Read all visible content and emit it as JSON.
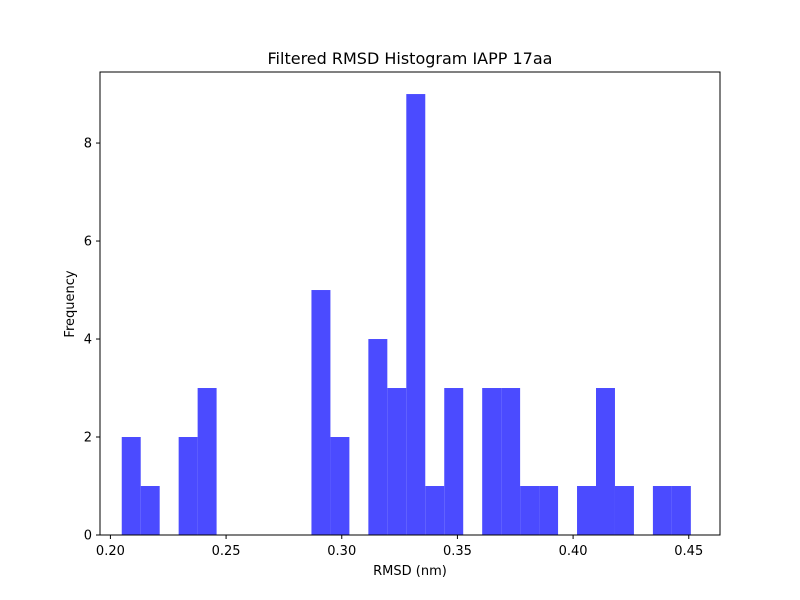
{
  "chart_data": {
    "type": "bar",
    "title": "Filtered RMSD Histogram IAPP 17aa",
    "xlabel": "RMSD (nm)",
    "ylabel": "Frequency",
    "xlim": [
      0.1955,
      0.4635
    ],
    "ylim": [
      0,
      9.45
    ],
    "bar_color": "#4b4bff",
    "bin_width": 0.0082,
    "bins": [
      {
        "x0": 0.2049,
        "count": 2
      },
      {
        "x0": 0.2131,
        "count": 1
      },
      {
        "x0": 0.2213,
        "count": 0
      },
      {
        "x0": 0.2295,
        "count": 2
      },
      {
        "x0": 0.2377,
        "count": 3
      },
      {
        "x0": 0.2459,
        "count": 0
      },
      {
        "x0": 0.2541,
        "count": 0
      },
      {
        "x0": 0.2623,
        "count": 0
      },
      {
        "x0": 0.2705,
        "count": 0
      },
      {
        "x0": 0.2787,
        "count": 0
      },
      {
        "x0": 0.2869,
        "count": 5
      },
      {
        "x0": 0.2951,
        "count": 2
      },
      {
        "x0": 0.3033,
        "count": 0
      },
      {
        "x0": 0.3115,
        "count": 4
      },
      {
        "x0": 0.3197,
        "count": 3
      },
      {
        "x0": 0.3279,
        "count": 9
      },
      {
        "x0": 0.3361,
        "count": 1
      },
      {
        "x0": 0.3443,
        "count": 3
      },
      {
        "x0": 0.3525,
        "count": 0
      },
      {
        "x0": 0.3607,
        "count": 3
      },
      {
        "x0": 0.3689,
        "count": 3
      },
      {
        "x0": 0.3771,
        "count": 1
      },
      {
        "x0": 0.3853,
        "count": 1
      },
      {
        "x0": 0.3935,
        "count": 0
      },
      {
        "x0": 0.4017,
        "count": 1
      },
      {
        "x0": 0.4099,
        "count": 3
      },
      {
        "x0": 0.4181,
        "count": 1
      },
      {
        "x0": 0.4263,
        "count": 0
      },
      {
        "x0": 0.4345,
        "count": 1
      },
      {
        "x0": 0.4427,
        "count": 1
      }
    ],
    "xticks": [
      "0.20",
      "0.25",
      "0.30",
      "0.35",
      "0.40",
      "0.45"
    ],
    "yticks": [
      "0",
      "2",
      "4",
      "6",
      "8"
    ],
    "grid": false
  }
}
